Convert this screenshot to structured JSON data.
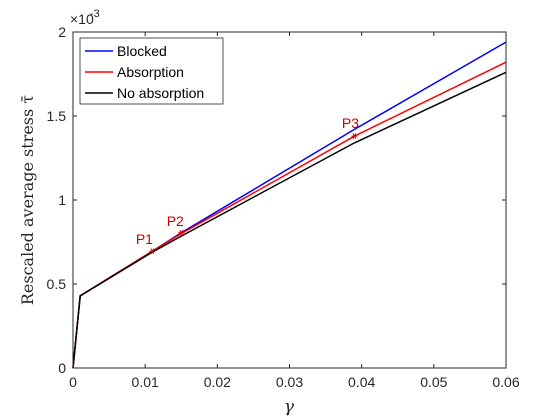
{
  "chart_data": {
    "type": "line",
    "xlabel": "γ",
    "ylabel": "Rescaled average stress τ̄",
    "exponent_label": "×10",
    "exponent_value": "-3",
    "xlim": [
      0,
      0.06
    ],
    "ylim": [
      0,
      2
    ],
    "xticks": [
      0,
      0.01,
      0.02,
      0.03,
      0.04,
      0.05,
      0.06
    ],
    "xtick_labels": [
      "0",
      "0.01",
      "0.02",
      "0.03",
      "0.04",
      "0.05",
      "0.06"
    ],
    "yticks": [
      0,
      0.5,
      1,
      1.5,
      2
    ],
    "ytick_labels": [
      "0",
      "0.5",
      "1",
      "1.5",
      "2"
    ],
    "grid": false,
    "legend_position": "top-left",
    "series": [
      {
        "name": "Blocked",
        "color": "#0000ff",
        "x": [
          0,
          0.001,
          0.011,
          0.015,
          0.039,
          0.06
        ],
        "y": [
          0,
          0.43,
          0.695,
          0.805,
          1.42,
          1.94
        ]
      },
      {
        "name": "Absorption",
        "color": "#ff0000",
        "x": [
          0,
          0.001,
          0.011,
          0.015,
          0.039,
          0.06
        ],
        "y": [
          0,
          0.43,
          0.695,
          0.8,
          1.38,
          1.82
        ]
      },
      {
        "name": "No absorption",
        "color": "#000000",
        "x": [
          0,
          0.001,
          0.011,
          0.015,
          0.039,
          0.06
        ],
        "y": [
          0,
          0.43,
          0.69,
          0.785,
          1.34,
          1.76
        ]
      }
    ],
    "annotations": [
      {
        "label": "P1",
        "x": 0.011,
        "y": 0.695,
        "color": "#cc0000"
      },
      {
        "label": "P2",
        "x": 0.015,
        "y": 0.805,
        "color": "#cc0000"
      },
      {
        "label": "P3",
        "x": 0.039,
        "y": 1.38,
        "color": "#cc0000"
      }
    ]
  }
}
